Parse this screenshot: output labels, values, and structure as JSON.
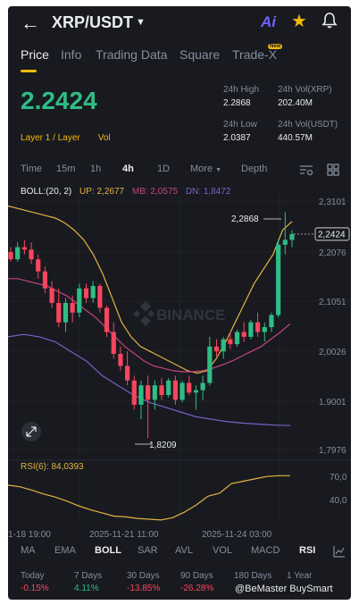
{
  "header": {
    "pair": "XRP/USDT",
    "ai_label": "Ai"
  },
  "tabs": [
    "Price",
    "Info",
    "Trading Data",
    "Square",
    "Trade-X"
  ],
  "new_badge": "New",
  "price": "2.2424",
  "tags": [
    "Layer 1 / Layer",
    "Vol"
  ],
  "stats": {
    "high_label": "24h High",
    "high_value": "2.2868",
    "low_label": "24h Low",
    "low_value": "2.0387",
    "volxrp_label": "24h Vol(XRP)",
    "volxrp_value": "202.40M",
    "volusdt_label": "24h Vol(USDT)",
    "volusdt_value": "440.57M"
  },
  "timeframes": [
    "Time",
    "15m",
    "1h",
    "4h",
    "1D",
    "More",
    "Depth"
  ],
  "boll": {
    "label": "BOLL:(20, 2)",
    "up": "UP: 2,2677",
    "mb": "MB: 2,0575",
    "dn": "DN: 1,8472"
  },
  "y_ticks": [
    "2,3101",
    "2,2076",
    "2,1051",
    "2,0026",
    "1,9001",
    "1,7976"
  ],
  "current_price_tag": "2,2424",
  "high_marker": "2,2868",
  "low_marker": "1,8209",
  "watermark_logo": "BINANCE",
  "rsi": {
    "label": "RSI(6): 84,0393",
    "ticks": [
      "70,0",
      "40,0"
    ]
  },
  "x_labels": [
    "1-18 19:00",
    "2025-11-21 11:00",
    "2025-11-24 03:00"
  ],
  "bottom_tabs": [
    "MA",
    "EMA",
    "BOLL",
    "SAR",
    "AVL",
    "VOL",
    "MACD",
    "RSI"
  ],
  "performance": {
    "labels": [
      "Today",
      "7 Days",
      "30 Days",
      "90 Days",
      "180 Days",
      "1 Year"
    ],
    "values": [
      "-0.15%",
      "4.11%",
      "-13.85%",
      "-26.28%",
      "",
      ""
    ]
  },
  "watermark": "@BeMaster BuySmart",
  "colors": {
    "up": "#2ebd85",
    "down": "#f6465d",
    "accent": "#f0b90b",
    "boll_up": "#e3b341",
    "boll_mb": "#c4457d",
    "boll_dn": "#7b61c9"
  },
  "chart_data": {
    "type": "candlestick",
    "ylim": [
      1.7976,
      2.3101
    ],
    "candles": [
      [
        2.205,
        2.215,
        2.185,
        2.19
      ],
      [
        2.19,
        2.225,
        2.185,
        2.215
      ],
      [
        2.215,
        2.23,
        2.2,
        2.21
      ],
      [
        2.21,
        2.225,
        2.18,
        2.19
      ],
      [
        2.19,
        2.2,
        2.15,
        2.165
      ],
      [
        2.165,
        2.175,
        2.12,
        2.13
      ],
      [
        2.13,
        2.145,
        2.09,
        2.1
      ],
      [
        2.1,
        2.13,
        2.05,
        2.06
      ],
      [
        2.06,
        2.11,
        2.04,
        2.1
      ],
      [
        2.1,
        2.115,
        2.06,
        2.08
      ],
      [
        2.08,
        2.14,
        2.07,
        2.13
      ],
      [
        2.13,
        2.14,
        2.1,
        2.11
      ],
      [
        2.11,
        2.145,
        2.1,
        2.135
      ],
      [
        2.135,
        2.14,
        2.08,
        2.09
      ],
      [
        2.09,
        2.095,
        2.03,
        2.04
      ],
      [
        2.04,
        2.06,
        1.985,
        1.995
      ],
      [
        1.995,
        2.01,
        1.96,
        1.97
      ],
      [
        1.97,
        2.0,
        1.93,
        1.94
      ],
      [
        1.94,
        1.95,
        1.88,
        1.89
      ],
      [
        1.89,
        1.94,
        1.86,
        1.93
      ],
      [
        1.93,
        1.95,
        1.821,
        1.9
      ],
      [
        1.9,
        1.94,
        1.88,
        1.93
      ],
      [
        1.93,
        1.945,
        1.9,
        1.91
      ],
      [
        1.91,
        1.945,
        1.905,
        1.94
      ],
      [
        1.94,
        1.95,
        1.89,
        1.9
      ],
      [
        1.9,
        1.94,
        1.895,
        1.935
      ],
      [
        1.935,
        1.95,
        1.91,
        1.915
      ],
      [
        1.915,
        1.93,
        1.88,
        1.92
      ],
      [
        1.92,
        1.95,
        1.9,
        1.935
      ],
      [
        1.935,
        2.03,
        1.93,
        2.01
      ],
      [
        2.01,
        2.025,
        1.99,
        2.0
      ],
      [
        2.0,
        2.03,
        1.985,
        2.025
      ],
      [
        2.025,
        2.04,
        2.005,
        2.015
      ],
      [
        2.015,
        2.045,
        2.01,
        2.04
      ],
      [
        2.04,
        2.06,
        2.02,
        2.03
      ],
      [
        2.03,
        2.065,
        2.025,
        2.06
      ],
      [
        2.06,
        2.08,
        2.03,
        2.04
      ],
      [
        2.04,
        2.06,
        2.02,
        2.05
      ],
      [
        2.05,
        2.08,
        2.04,
        2.075
      ],
      [
        2.075,
        2.23,
        2.07,
        2.22
      ],
      [
        2.22,
        2.287,
        2.2,
        2.23
      ],
      [
        2.23,
        2.25,
        2.215,
        2.242
      ]
    ],
    "boll_up": [
      2.3,
      2.295,
      2.29,
      2.285,
      2.28,
      2.275,
      2.265,
      2.25,
      2.23,
      2.2,
      2.16,
      2.11,
      2.06,
      2.03,
      2.01,
      2.0,
      1.99,
      1.98,
      1.97,
      1.96,
      1.955,
      1.96,
      1.985,
      2.02,
      2.06,
      2.1,
      2.14,
      2.17,
      2.2,
      2.25,
      2.268
    ],
    "boll_mb": [
      2.15,
      2.15,
      2.145,
      2.14,
      2.135,
      2.125,
      2.115,
      2.1,
      2.085,
      2.07,
      2.05,
      2.03,
      2.01,
      1.995,
      1.98,
      1.97,
      1.965,
      1.96,
      1.958,
      1.958,
      1.96,
      1.965,
      1.972,
      1.98,
      1.99,
      2.0,
      2.01,
      2.025,
      2.04,
      2.057
    ],
    "boll_dn": [
      2.03,
      2.035,
      2.03,
      2.02,
      2.0,
      1.98,
      1.95,
      1.93,
      1.91,
      1.895,
      1.885,
      1.875,
      1.865,
      1.86,
      1.855,
      1.852,
      1.85,
      1.848,
      1.847
    ],
    "rsi": [
      72,
      70,
      66,
      61,
      57,
      52,
      46,
      41,
      37,
      33,
      32,
      30,
      29,
      28,
      31,
      38,
      47,
      58,
      62,
      74,
      77,
      80,
      83,
      84,
      84
    ]
  }
}
